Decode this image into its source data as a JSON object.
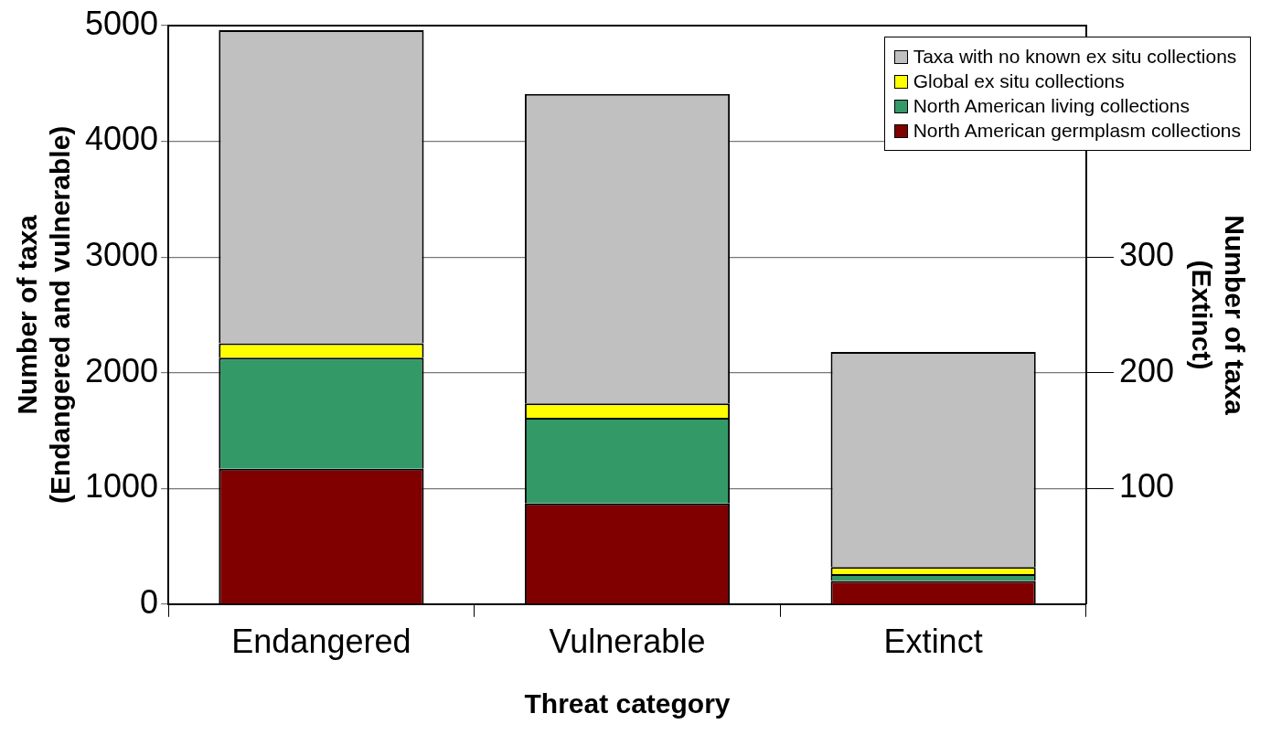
{
  "chart_data": {
    "type": "bar",
    "stacked": true,
    "xlabel": "Threat category",
    "ylabel": "Number of taxa\n(Endangered and vulnerable)",
    "y2label": "Number of taxa\n(Extinct)",
    "categories": [
      "Endangered",
      "Vulnerable",
      "Extinct"
    ],
    "series": [
      {
        "name": "North American germplasm collections",
        "color": "#800000",
        "values": [
          1170,
          870,
          null
        ]
      },
      {
        "name": "North American living collections",
        "color": "#339966",
        "values": [
          960,
          740,
          null
        ]
      },
      {
        "name": "Global ex situ collections",
        "color": "#ffff00",
        "values": [
          125,
          125,
          null
        ]
      },
      {
        "name": "Taxa with no known ex situ collections",
        "color": "#c0c0c0",
        "values": [
          2705,
          2675,
          null
        ]
      },
      {
        "color": "#800000",
        "axis": "y2",
        "values": [
          null,
          null,
          20
        ]
      },
      {
        "color": "#339966",
        "axis": "y2",
        "values": [
          null,
          null,
          6
        ]
      },
      {
        "color": "#ffff00",
        "axis": "y2",
        "values": [
          null,
          null,
          6
        ]
      },
      {
        "color": "#c0c0c0",
        "axis": "y2",
        "values": [
          null,
          null,
          186
        ]
      }
    ],
    "ylim": [
      0,
      5000
    ],
    "yticks": [
      0,
      1000,
      2000,
      3000,
      4000,
      5000
    ],
    "y2lim": [
      0,
      500
    ],
    "y2ticks": [
      100,
      200,
      300
    ],
    "grid": "y",
    "legend": "top right"
  }
}
